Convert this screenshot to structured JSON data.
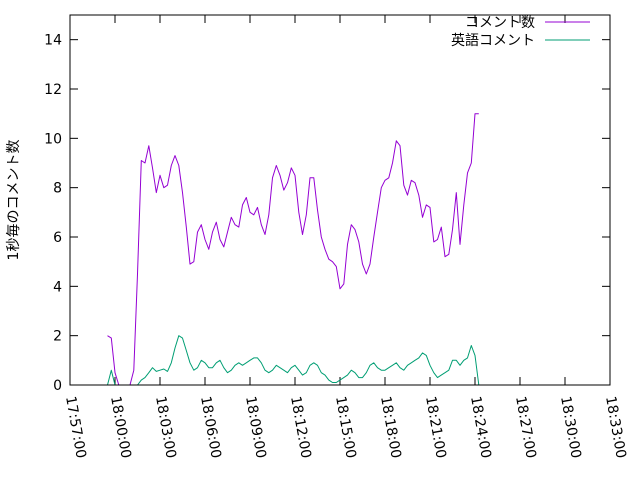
{
  "chart_data": {
    "type": "line",
    "title": "",
    "xlabel": "",
    "ylabel": "1秒毎のコメント数",
    "ylim": [
      0,
      15
    ],
    "xlim": [
      "17:57:00",
      "18:33:00"
    ],
    "y_ticks": [
      "0",
      "2",
      "4",
      "6",
      "8",
      "10",
      "12",
      "14"
    ],
    "x_ticks": [
      "17:57:00",
      "18:00:00",
      "18:03:00",
      "18:06:00",
      "18:09:00",
      "18:12:00",
      "18:15:00",
      "18:18:00",
      "18:21:00",
      "18:24:00",
      "18:27:00",
      "18:30:00",
      "18:33:00"
    ],
    "grid": false,
    "legend_position": "top-right",
    "series": [
      {
        "name": "コメント数",
        "color": "#9400d3",
        "points": [
          [
            "17:59:30",
            2.0
          ],
          [
            "17:59:45",
            1.9
          ],
          [
            "18:00:00",
            0.5
          ],
          [
            "18:00:15",
            0.0
          ],
          [
            "18:00:30",
            0.0
          ],
          [
            "18:00:45",
            0.0
          ],
          [
            "18:01:00",
            0.0
          ],
          [
            "18:01:15",
            0.6
          ],
          [
            "18:01:30",
            4.5
          ],
          [
            "18:01:45",
            9.1
          ],
          [
            "18:02:00",
            9.0
          ],
          [
            "18:02:15",
            9.7
          ],
          [
            "18:02:30",
            8.8
          ],
          [
            "18:02:45",
            7.8
          ],
          [
            "18:03:00",
            8.5
          ],
          [
            "18:03:15",
            8.0
          ],
          [
            "18:03:30",
            8.1
          ],
          [
            "18:03:45",
            8.9
          ],
          [
            "18:04:00",
            9.3
          ],
          [
            "18:04:15",
            8.9
          ],
          [
            "18:04:30",
            7.8
          ],
          [
            "18:04:45",
            6.4
          ],
          [
            "18:05:00",
            4.9
          ],
          [
            "18:05:15",
            5.0
          ],
          [
            "18:05:30",
            6.2
          ],
          [
            "18:05:45",
            6.5
          ],
          [
            "18:06:00",
            5.9
          ],
          [
            "18:06:15",
            5.5
          ],
          [
            "18:06:30",
            6.2
          ],
          [
            "18:06:45",
            6.6
          ],
          [
            "18:07:00",
            5.9
          ],
          [
            "18:07:15",
            5.6
          ],
          [
            "18:07:30",
            6.2
          ],
          [
            "18:07:45",
            6.8
          ],
          [
            "18:08:00",
            6.5
          ],
          [
            "18:08:15",
            6.4
          ],
          [
            "18:08:30",
            7.3
          ],
          [
            "18:08:45",
            7.6
          ],
          [
            "18:09:00",
            7.0
          ],
          [
            "18:09:15",
            6.9
          ],
          [
            "18:09:30",
            7.2
          ],
          [
            "18:09:45",
            6.5
          ],
          [
            "18:10:00",
            6.1
          ],
          [
            "18:10:15",
            6.9
          ],
          [
            "18:10:30",
            8.4
          ],
          [
            "18:10:45",
            8.9
          ],
          [
            "18:11:00",
            8.5
          ],
          [
            "18:11:15",
            7.9
          ],
          [
            "18:11:30",
            8.2
          ],
          [
            "18:11:45",
            8.8
          ],
          [
            "18:12:00",
            8.5
          ],
          [
            "18:12:15",
            7.0
          ],
          [
            "18:12:30",
            6.1
          ],
          [
            "18:12:45",
            6.9
          ],
          [
            "18:13:00",
            8.4
          ],
          [
            "18:13:15",
            8.4
          ],
          [
            "18:13:30",
            7.1
          ],
          [
            "18:13:45",
            6.0
          ],
          [
            "18:14:00",
            5.5
          ],
          [
            "18:14:15",
            5.1
          ],
          [
            "18:14:30",
            5.0
          ],
          [
            "18:14:45",
            4.8
          ],
          [
            "18:15:00",
            3.9
          ],
          [
            "18:15:15",
            4.1
          ],
          [
            "18:15:30",
            5.7
          ],
          [
            "18:15:45",
            6.5
          ],
          [
            "18:16:00",
            6.3
          ],
          [
            "18:16:15",
            5.8
          ],
          [
            "18:16:30",
            4.9
          ],
          [
            "18:16:45",
            4.5
          ],
          [
            "18:17:00",
            4.9
          ],
          [
            "18:17:15",
            6.0
          ],
          [
            "18:17:30",
            7.0
          ],
          [
            "18:17:45",
            8.0
          ],
          [
            "18:18:00",
            8.3
          ],
          [
            "18:18:15",
            8.4
          ],
          [
            "18:18:30",
            9.0
          ],
          [
            "18:18:45",
            9.9
          ],
          [
            "18:19:00",
            9.7
          ],
          [
            "18:19:15",
            8.1
          ],
          [
            "18:19:30",
            7.7
          ],
          [
            "18:19:45",
            8.3
          ],
          [
            "18:20:00",
            8.2
          ],
          [
            "18:20:15",
            7.7
          ],
          [
            "18:20:30",
            6.8
          ],
          [
            "18:20:45",
            7.3
          ],
          [
            "18:21:00",
            7.2
          ],
          [
            "18:21:15",
            5.8
          ],
          [
            "18:21:30",
            5.9
          ],
          [
            "18:21:45",
            6.4
          ],
          [
            "18:22:00",
            5.2
          ],
          [
            "18:22:15",
            5.3
          ],
          [
            "18:22:30",
            6.3
          ],
          [
            "18:22:45",
            7.8
          ],
          [
            "18:23:00",
            5.7
          ],
          [
            "18:23:15",
            7.3
          ],
          [
            "18:23:30",
            8.6
          ],
          [
            "18:23:45",
            9.0
          ],
          [
            "18:24:00",
            11.0
          ],
          [
            "18:24:15",
            11.0
          ]
        ]
      },
      {
        "name": "英語コメント",
        "color": "#009e73",
        "points": [
          [
            "17:59:30",
            0.0
          ],
          [
            "17:59:45",
            0.6
          ],
          [
            "18:00:00",
            0.0
          ],
          [
            "18:00:15",
            0.0
          ],
          [
            "18:00:30",
            0.0
          ],
          [
            "18:00:45",
            0.0
          ],
          [
            "18:01:00",
            0.0
          ],
          [
            "18:01:15",
            0.0
          ],
          [
            "18:01:30",
            0.0
          ],
          [
            "18:01:45",
            0.2
          ],
          [
            "18:02:00",
            0.3
          ],
          [
            "18:02:15",
            0.5
          ],
          [
            "18:02:30",
            0.7
          ],
          [
            "18:02:45",
            0.55
          ],
          [
            "18:03:00",
            0.6
          ],
          [
            "18:03:15",
            0.65
          ],
          [
            "18:03:30",
            0.55
          ],
          [
            "18:03:45",
            0.9
          ],
          [
            "18:04:00",
            1.5
          ],
          [
            "18:04:15",
            2.0
          ],
          [
            "18:04:30",
            1.9
          ],
          [
            "18:04:45",
            1.4
          ],
          [
            "18:05:00",
            0.9
          ],
          [
            "18:05:15",
            0.6
          ],
          [
            "18:05:30",
            0.7
          ],
          [
            "18:05:45",
            1.0
          ],
          [
            "18:06:00",
            0.9
          ],
          [
            "18:06:15",
            0.7
          ],
          [
            "18:06:30",
            0.7
          ],
          [
            "18:06:45",
            0.9
          ],
          [
            "18:07:00",
            1.0
          ],
          [
            "18:07:15",
            0.7
          ],
          [
            "18:07:30",
            0.5
          ],
          [
            "18:07:45",
            0.6
          ],
          [
            "18:08:00",
            0.8
          ],
          [
            "18:08:15",
            0.9
          ],
          [
            "18:08:30",
            0.8
          ],
          [
            "18:08:45",
            0.9
          ],
          [
            "18:09:00",
            1.0
          ],
          [
            "18:09:15",
            1.1
          ],
          [
            "18:09:30",
            1.1
          ],
          [
            "18:09:45",
            0.9
          ],
          [
            "18:10:00",
            0.6
          ],
          [
            "18:10:15",
            0.5
          ],
          [
            "18:10:30",
            0.6
          ],
          [
            "18:10:45",
            0.8
          ],
          [
            "18:11:00",
            0.7
          ],
          [
            "18:11:15",
            0.6
          ],
          [
            "18:11:30",
            0.5
          ],
          [
            "18:11:45",
            0.7
          ],
          [
            "18:12:00",
            0.8
          ],
          [
            "18:12:15",
            0.6
          ],
          [
            "18:12:30",
            0.4
          ],
          [
            "18:12:45",
            0.5
          ],
          [
            "18:13:00",
            0.8
          ],
          [
            "18:13:15",
            0.9
          ],
          [
            "18:13:30",
            0.8
          ],
          [
            "18:13:45",
            0.5
          ],
          [
            "18:14:00",
            0.4
          ],
          [
            "18:14:15",
            0.2
          ],
          [
            "18:14:30",
            0.1
          ],
          [
            "18:14:45",
            0.1
          ],
          [
            "18:15:00",
            0.2
          ],
          [
            "18:15:15",
            0.3
          ],
          [
            "18:15:30",
            0.4
          ],
          [
            "18:15:45",
            0.6
          ],
          [
            "18:16:00",
            0.5
          ],
          [
            "18:16:15",
            0.3
          ],
          [
            "18:16:30",
            0.3
          ],
          [
            "18:16:45",
            0.5
          ],
          [
            "18:17:00",
            0.8
          ],
          [
            "18:17:15",
            0.9
          ],
          [
            "18:17:30",
            0.7
          ],
          [
            "18:17:45",
            0.6
          ],
          [
            "18:18:00",
            0.6
          ],
          [
            "18:18:15",
            0.7
          ],
          [
            "18:18:30",
            0.8
          ],
          [
            "18:18:45",
            0.9
          ],
          [
            "18:19:00",
            0.7
          ],
          [
            "18:19:15",
            0.6
          ],
          [
            "18:19:30",
            0.8
          ],
          [
            "18:19:45",
            0.9
          ],
          [
            "18:20:00",
            1.0
          ],
          [
            "18:20:15",
            1.1
          ],
          [
            "18:20:30",
            1.3
          ],
          [
            "18:20:45",
            1.2
          ],
          [
            "18:21:00",
            0.8
          ],
          [
            "18:21:15",
            0.5
          ],
          [
            "18:21:30",
            0.3
          ],
          [
            "18:21:45",
            0.4
          ],
          [
            "18:22:00",
            0.5
          ],
          [
            "18:22:15",
            0.6
          ],
          [
            "18:22:30",
            1.0
          ],
          [
            "18:22:45",
            1.0
          ],
          [
            "18:23:00",
            0.8
          ],
          [
            "18:23:15",
            1.0
          ],
          [
            "18:23:30",
            1.1
          ],
          [
            "18:23:45",
            1.6
          ],
          [
            "18:24:00",
            1.2
          ],
          [
            "18:24:15",
            0.0
          ]
        ]
      }
    ]
  }
}
